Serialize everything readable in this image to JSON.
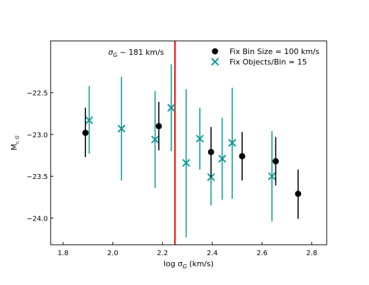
{
  "chart_data": {
    "type": "scatter",
    "xlabel": "log σ",
    "xlabel_sub": "G",
    "xlabel_unit": " (km/s)",
    "ylabel": "M",
    "ylabel_sub": "r, G",
    "xlim": [
      1.75,
      2.86
    ],
    "ylim": [
      -24.32,
      -21.88
    ],
    "xticks": [
      1.8,
      2.0,
      2.2,
      2.4,
      2.6,
      2.8
    ],
    "xtick_labels": [
      "1.8",
      "2.0",
      "2.2",
      "2.4",
      "2.6",
      "2.8"
    ],
    "yticks": [
      -22.5,
      -23.0,
      -23.5,
      -24.0
    ],
    "ytick_labels": [
      "−22.5",
      "−23.0",
      "−23.5",
      "−24.0"
    ],
    "legend_position": "top-right",
    "vline": {
      "x": 2.25,
      "color": "#ee1111",
      "label_prefix": "σ",
      "label_sub": "G",
      "label_rest": " ~ 181 km/s"
    },
    "series": [
      {
        "name": "Fix Bin Size = 100 km/s",
        "marker": "circle",
        "color": "#000000",
        "points": [
          {
            "x": 1.89,
            "y": -22.98,
            "ylo": -23.27,
            "yhi": -22.68
          },
          {
            "x": 2.185,
            "y": -22.9,
            "ylo": -23.19,
            "yhi": -22.61
          },
          {
            "x": 2.395,
            "y": -23.21,
            "ylo": -23.51,
            "yhi": -22.91
          },
          {
            "x": 2.52,
            "y": -23.26,
            "ylo": -23.55,
            "yhi": -22.97
          },
          {
            "x": 2.655,
            "y": -23.32,
            "ylo": -23.61,
            "yhi": -23.03
          },
          {
            "x": 2.745,
            "y": -23.71,
            "ylo": -24.01,
            "yhi": -23.42
          }
        ]
      },
      {
        "name": "Fix Objects/Bin = 15",
        "marker": "x",
        "color": "#119999",
        "points": [
          {
            "x": 1.905,
            "y": -22.83,
            "ylo": -23.23,
            "yhi": -22.42
          },
          {
            "x": 2.035,
            "y": -22.93,
            "ylo": -23.55,
            "yhi": -22.31
          },
          {
            "x": 2.17,
            "y": -23.06,
            "ylo": -23.64,
            "yhi": -22.48
          },
          {
            "x": 2.235,
            "y": -22.68,
            "ylo": -23.2,
            "yhi": -22.16
          },
          {
            "x": 2.295,
            "y": -23.34,
            "ylo": -24.23,
            "yhi": -22.46
          },
          {
            "x": 2.35,
            "y": -23.05,
            "ylo": -23.42,
            "yhi": -22.68
          },
          {
            "x": 2.395,
            "y": -23.51,
            "ylo": -23.85,
            "yhi": -23.17
          },
          {
            "x": 2.44,
            "y": -23.29,
            "ylo": -23.78,
            "yhi": -22.8
          },
          {
            "x": 2.48,
            "y": -23.1,
            "ylo": -23.77,
            "yhi": -22.44
          },
          {
            "x": 2.64,
            "y": -23.5,
            "ylo": -24.04,
            "yhi": -22.96
          }
        ]
      }
    ]
  }
}
